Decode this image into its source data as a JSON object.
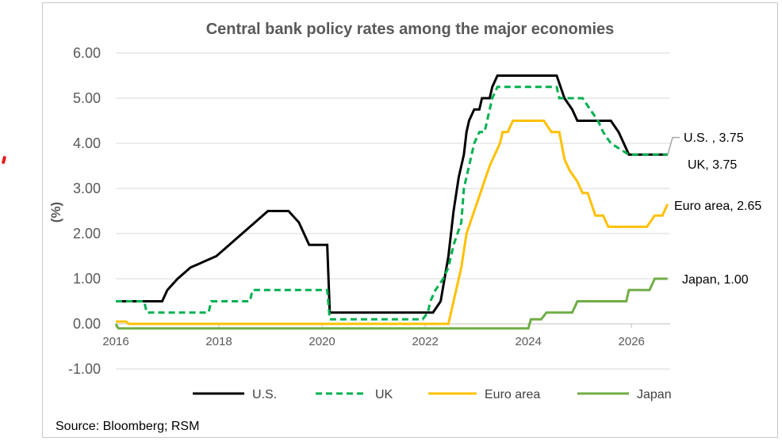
{
  "chart_data": {
    "type": "line",
    "title": "Central bank policy rates among the major economies",
    "ylabel": "(%)",
    "xlabel": "",
    "source": "Source: Bloomberg; RSM",
    "ylim": [
      -1,
      6
    ],
    "xlim": [
      2016,
      2026.75
    ],
    "grid": "horizontal",
    "legend_position": "bottom",
    "y_ticks": [
      "6.00",
      "5.00",
      "4.00",
      "3.00",
      "2.00",
      "1.00",
      "0.00",
      "-1.00"
    ],
    "y_tick_values": [
      6,
      5,
      4,
      3,
      2,
      1,
      0,
      -1
    ],
    "x_ticks": [
      "2016",
      "2018",
      "2020",
      "2022",
      "2024",
      "2026"
    ],
    "x_tick_values": [
      2016,
      2018,
      2020,
      2022,
      2024,
      2026
    ],
    "annotations": [
      {
        "text": "U.S. , 3.75",
        "series": "U.S."
      },
      {
        "text": "UK, 3.75",
        "series": "UK"
      },
      {
        "text": "Euro area, 2.65",
        "series": "Euro area"
      },
      {
        "text": "Japan, 1.00",
        "series": "Japan"
      }
    ],
    "series": [
      {
        "name": "U.S.",
        "color": "#000000",
        "dash": "solid",
        "points": [
          [
            2016.0,
            0.5
          ],
          [
            2016.9,
            0.5
          ],
          [
            2017.0,
            0.75
          ],
          [
            2017.2,
            1.0
          ],
          [
            2017.45,
            1.25
          ],
          [
            2017.95,
            1.5
          ],
          [
            2018.2,
            1.75
          ],
          [
            2018.45,
            2.0
          ],
          [
            2018.7,
            2.25
          ],
          [
            2018.95,
            2.5
          ],
          [
            2019.35,
            2.5
          ],
          [
            2019.55,
            2.25
          ],
          [
            2019.65,
            2.0
          ],
          [
            2019.75,
            1.75
          ],
          [
            2020.1,
            1.75
          ],
          [
            2020.15,
            0.25
          ],
          [
            2022.15,
            0.25
          ],
          [
            2022.3,
            0.5
          ],
          [
            2022.45,
            1.5
          ],
          [
            2022.55,
            2.5
          ],
          [
            2022.65,
            3.25
          ],
          [
            2022.75,
            3.75
          ],
          [
            2022.8,
            4.25
          ],
          [
            2022.85,
            4.5
          ],
          [
            2022.95,
            4.75
          ],
          [
            2023.05,
            4.75
          ],
          [
            2023.1,
            5.0
          ],
          [
            2023.25,
            5.0
          ],
          [
            2023.3,
            5.25
          ],
          [
            2023.4,
            5.5
          ],
          [
            2024.55,
            5.5
          ],
          [
            2024.7,
            5.0
          ],
          [
            2024.85,
            4.75
          ],
          [
            2024.95,
            4.5
          ],
          [
            2025.6,
            4.5
          ],
          [
            2025.75,
            4.25
          ],
          [
            2025.85,
            4.0
          ],
          [
            2025.95,
            3.75
          ],
          [
            2026.7,
            3.75
          ]
        ]
      },
      {
        "name": "UK",
        "color": "#00b050",
        "dash": "dashed",
        "points": [
          [
            2016.0,
            0.5
          ],
          [
            2016.55,
            0.5
          ],
          [
            2016.6,
            0.25
          ],
          [
            2017.8,
            0.25
          ],
          [
            2017.85,
            0.5
          ],
          [
            2018.6,
            0.5
          ],
          [
            2018.65,
            0.75
          ],
          [
            2020.1,
            0.75
          ],
          [
            2020.15,
            0.1
          ],
          [
            2021.95,
            0.1
          ],
          [
            2022.05,
            0.25
          ],
          [
            2022.1,
            0.5
          ],
          [
            2022.2,
            0.75
          ],
          [
            2022.35,
            1.0
          ],
          [
            2022.45,
            1.25
          ],
          [
            2022.55,
            1.75
          ],
          [
            2022.7,
            2.25
          ],
          [
            2022.75,
            3.0
          ],
          [
            2022.85,
            3.5
          ],
          [
            2022.95,
            4.0
          ],
          [
            2023.05,
            4.25
          ],
          [
            2023.15,
            4.25
          ],
          [
            2023.2,
            4.5
          ],
          [
            2023.3,
            5.0
          ],
          [
            2023.4,
            5.25
          ],
          [
            2024.55,
            5.25
          ],
          [
            2024.6,
            5.0
          ],
          [
            2025.05,
            5.0
          ],
          [
            2025.2,
            4.75
          ],
          [
            2025.35,
            4.5
          ],
          [
            2025.45,
            4.25
          ],
          [
            2025.6,
            4.0
          ],
          [
            2025.95,
            3.75
          ],
          [
            2026.7,
            3.75
          ]
        ]
      },
      {
        "name": "Euro area",
        "color": "#ffc000",
        "dash": "solid",
        "points": [
          [
            2016.0,
            0.05
          ],
          [
            2016.2,
            0.05
          ],
          [
            2016.25,
            0.0
          ],
          [
            2022.45,
            0.0
          ],
          [
            2022.55,
            0.5
          ],
          [
            2022.7,
            1.25
          ],
          [
            2022.8,
            2.0
          ],
          [
            2022.95,
            2.5
          ],
          [
            2023.1,
            3.0
          ],
          [
            2023.25,
            3.5
          ],
          [
            2023.35,
            3.75
          ],
          [
            2023.45,
            4.0
          ],
          [
            2023.5,
            4.25
          ],
          [
            2023.6,
            4.25
          ],
          [
            2023.7,
            4.5
          ],
          [
            2024.3,
            4.5
          ],
          [
            2024.45,
            4.25
          ],
          [
            2024.6,
            4.25
          ],
          [
            2024.7,
            3.65
          ],
          [
            2024.8,
            3.4
          ],
          [
            2024.95,
            3.15
          ],
          [
            2025.05,
            2.9
          ],
          [
            2025.15,
            2.9
          ],
          [
            2025.3,
            2.4
          ],
          [
            2025.45,
            2.4
          ],
          [
            2025.55,
            2.15
          ],
          [
            2026.3,
            2.15
          ],
          [
            2026.45,
            2.4
          ],
          [
            2026.6,
            2.4
          ],
          [
            2026.7,
            2.65
          ]
        ]
      },
      {
        "name": "Japan",
        "color": "#70ad47",
        "dash": "solid",
        "points": [
          [
            2016.0,
            0.0
          ],
          [
            2016.05,
            -0.1
          ],
          [
            2024.0,
            -0.1
          ],
          [
            2024.05,
            0.1
          ],
          [
            2024.25,
            0.1
          ],
          [
            2024.35,
            0.25
          ],
          [
            2024.85,
            0.25
          ],
          [
            2024.95,
            0.5
          ],
          [
            2025.9,
            0.5
          ],
          [
            2025.95,
            0.75
          ],
          [
            2026.35,
            0.75
          ],
          [
            2026.45,
            1.0
          ],
          [
            2026.7,
            1.0
          ]
        ]
      }
    ]
  }
}
